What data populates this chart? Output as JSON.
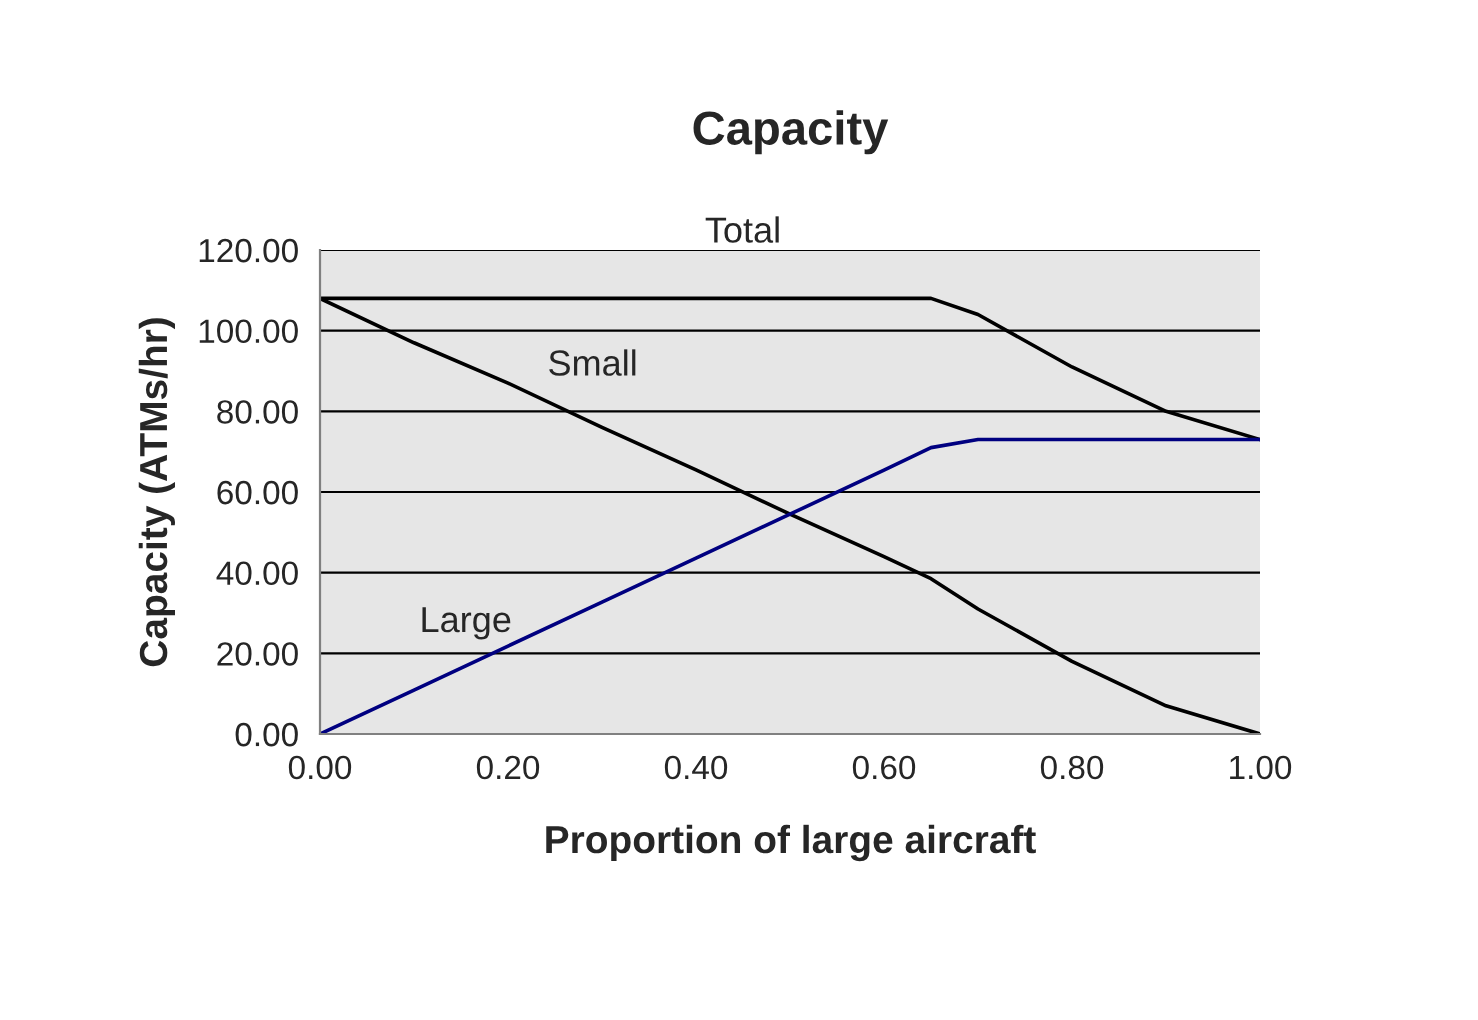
{
  "chart_data": {
    "type": "line",
    "title": "Capacity",
    "xlabel": "Proportion of large aircraft",
    "ylabel": "Capacity (ATMs/hr)",
    "x": [
      0,
      0.1,
      0.2,
      0.3,
      0.4,
      0.5,
      0.6,
      0.65,
      0.7,
      0.8,
      0.9,
      1.0
    ],
    "series": [
      {
        "name": "Total",
        "color": "#000000",
        "values": [
          108,
          108,
          108,
          108,
          108,
          108,
          108,
          108,
          104,
          91,
          80,
          73
        ]
      },
      {
        "name": "Small",
        "color": "#000000",
        "values": [
          108,
          97,
          87,
          76,
          65.5,
          54.5,
          44,
          38.5,
          31,
          18,
          7,
          0
        ]
      },
      {
        "name": "Large",
        "color": "#000080",
        "values": [
          0,
          10.9,
          21.8,
          32.7,
          43.6,
          54.5,
          65.4,
          71,
          73,
          73,
          73,
          73
        ]
      }
    ],
    "xlim": [
      0,
      1
    ],
    "ylim": [
      0,
      120
    ],
    "xticks": [
      {
        "value": 0,
        "label": "0.00"
      },
      {
        "value": 0.2,
        "label": "0.20"
      },
      {
        "value": 0.4,
        "label": "0.40"
      },
      {
        "value": 0.6,
        "label": "0.60"
      },
      {
        "value": 0.8,
        "label": "0.80"
      },
      {
        "value": 1.0,
        "label": "1.00"
      }
    ],
    "yticks": [
      {
        "value": 0,
        "label": "0.00"
      },
      {
        "value": 20,
        "label": "20.00"
      },
      {
        "value": 40,
        "label": "40.00"
      },
      {
        "value": 60,
        "label": "60.00"
      },
      {
        "value": 80,
        "label": "80.00"
      },
      {
        "value": 100,
        "label": "100.00"
      },
      {
        "value": 120,
        "label": "120.00"
      }
    ],
    "grid": "y",
    "legend": false,
    "marker": "none",
    "line_style": "solid"
  }
}
